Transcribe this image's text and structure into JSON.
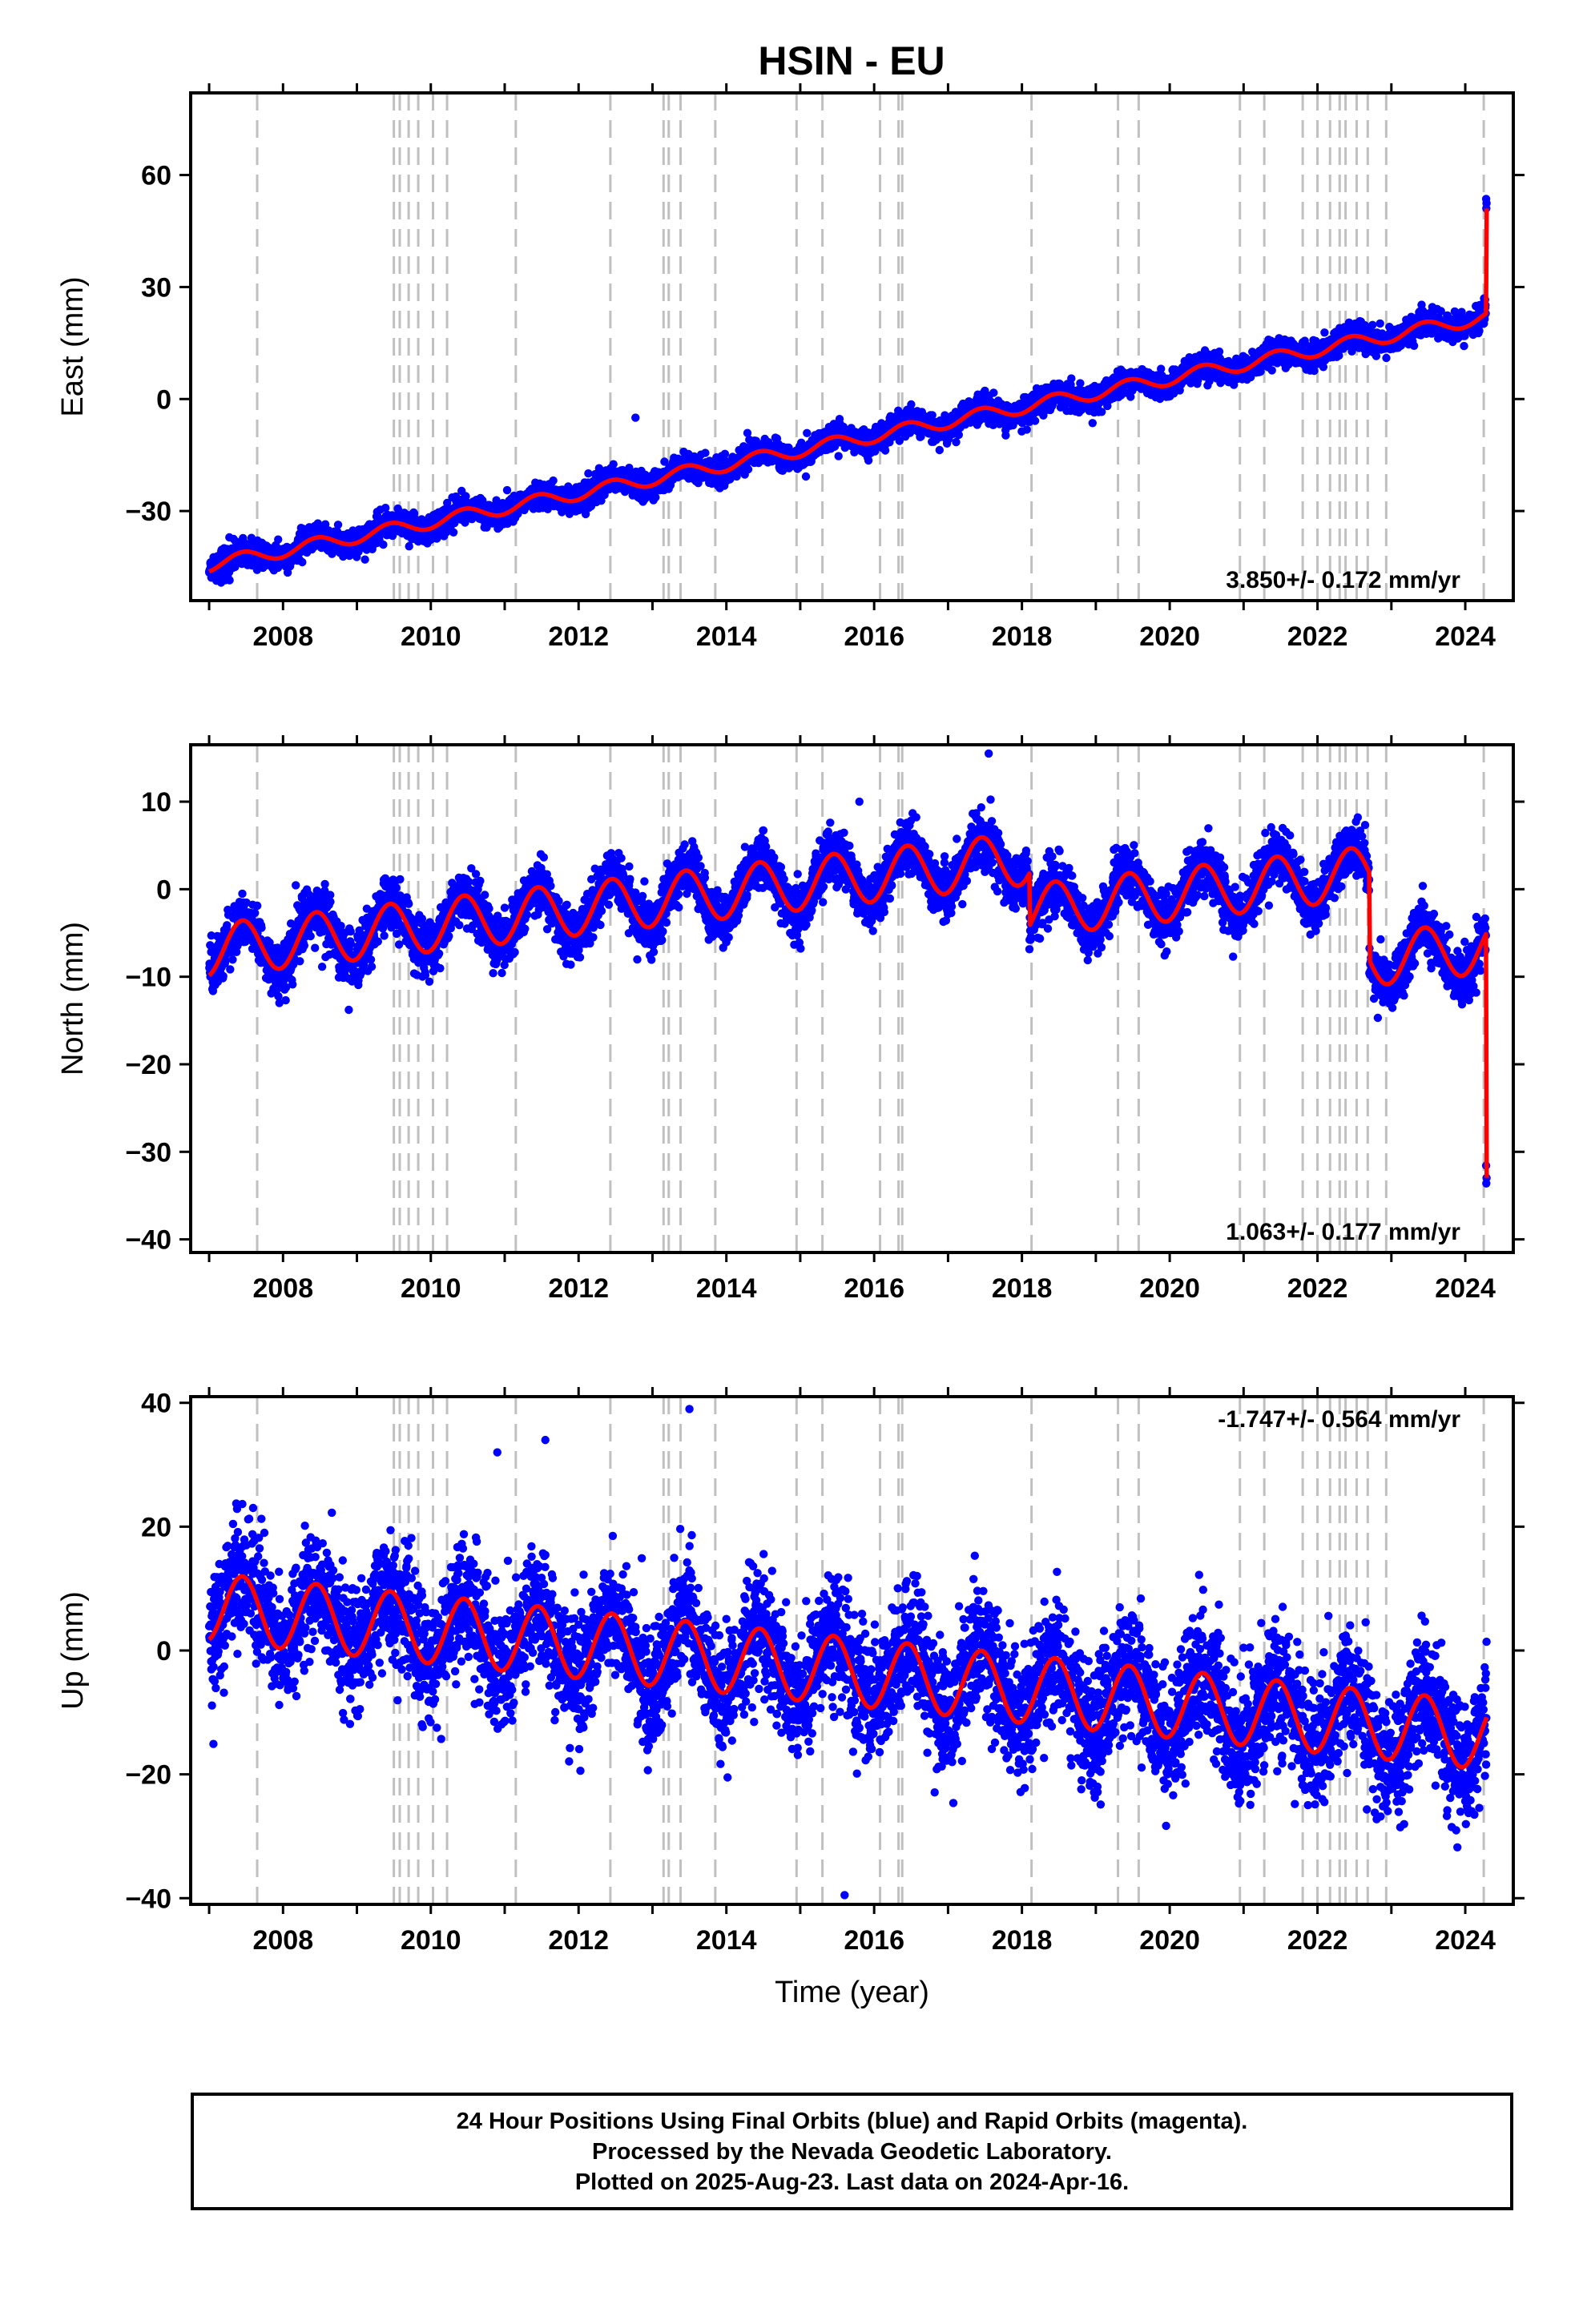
{
  "title": "HSIN - EU",
  "colors": {
    "final_orbits": "#0000ff",
    "model": "#ff0000",
    "step_lines": "#c0c0c0",
    "axis": "#000000"
  },
  "footer": {
    "line1": "24 Hour Positions Using Final Orbits (blue) and Rapid Orbits (magenta).",
    "line2": "Processed by the Nevada Geodetic Laboratory.",
    "line3": "Plotted on 2025-Aug-23. Last data on 2024-Apr-16."
  },
  "chart_data": [
    {
      "type": "scatter",
      "ylabel": "East (mm)",
      "xlabel": "",
      "xlim": [
        2006.75,
        2024.65
      ],
      "ylim": [
        -54,
        82
      ],
      "yticks": [
        -30,
        0,
        30,
        60
      ],
      "xticks": [
        2008,
        2010,
        2012,
        2014,
        2016,
        2018,
        2020,
        2022,
        2024
      ],
      "rate_label": "3.850+/- 0.172 mm/yr",
      "rate_label_position": "bottom-right",
      "trend": {
        "t0": 2007.0,
        "start": -44.5,
        "rate": 3.85,
        "seasonal_amplitude": 1.8,
        "scatter": 1.7
      },
      "offsets": [
        {
          "x": 2024.28,
          "dy": 28.0
        }
      ],
      "outliers": [
        {
          "x": 2012.77,
          "y": -5
        }
      ],
      "x_start": 2007.0,
      "x_end": 2024.29
    },
    {
      "type": "scatter",
      "ylabel": "North (mm)",
      "xlabel": "",
      "xlim": [
        2006.75,
        2024.65
      ],
      "ylim": [
        -41.5,
        16.5
      ],
      "yticks": [
        -40,
        -30,
        -20,
        -10,
        0,
        10
      ],
      "xticks": [
        2008,
        2010,
        2012,
        2014,
        2016,
        2018,
        2020,
        2022,
        2024
      ],
      "rate_label": "1.063+/- 0.177 mm/yr",
      "rate_label_position": "bottom-right",
      "trend": {
        "t0": 2007.0,
        "start": -7.0,
        "rate": 0.95,
        "seasonal_amplitude": 3.0,
        "scatter": 1.5
      },
      "offsets": [
        {
          "x": 2018.1,
          "dy": -6.0
        },
        {
          "x": 2022.7,
          "dy": -10.0
        },
        {
          "x": 2024.28,
          "dy": -28.0
        }
      ],
      "outliers": [
        {
          "x": 2017.55,
          "y": 15.5
        },
        {
          "x": 2015.8,
          "y": 10.0
        }
      ],
      "x_start": 2007.0,
      "x_end": 2024.29
    },
    {
      "type": "scatter",
      "ylabel": "Up (mm)",
      "xlabel": "Time (year)",
      "xlim": [
        2006.75,
        2024.65
      ],
      "ylim": [
        -41,
        41
      ],
      "yticks": [
        -40,
        -20,
        0,
        20,
        40
      ],
      "xticks": [
        2008,
        2010,
        2012,
        2014,
        2016,
        2018,
        2020,
        2022,
        2024
      ],
      "rate_label": "-1.747+/- 0.564 mm/yr",
      "rate_label_position": "top-right",
      "trend": {
        "t0": 2007.0,
        "start": 7.0,
        "rate": -1.2,
        "seasonal_amplitude": 5.5,
        "scatter": 5.0
      },
      "offsets": [],
      "outliers": [
        {
          "x": 2013.5,
          "y": 39
        },
        {
          "x": 2015.6,
          "y": -39.5
        },
        {
          "x": 2011.55,
          "y": 34
        },
        {
          "x": 2010.9,
          "y": 32
        }
      ],
      "x_start": 2007.0,
      "x_end": 2024.29
    }
  ],
  "steps": [
    2007.65,
    2009.5,
    2009.58,
    2009.7,
    2009.83,
    2010.03,
    2010.22,
    2011.15,
    2012.43,
    2013.15,
    2013.22,
    2013.38,
    2013.85,
    2014.95,
    2015.3,
    2016.08,
    2016.33,
    2016.38,
    2018.13,
    2019.3,
    2019.58,
    2020.95,
    2021.28,
    2021.8,
    2022.0,
    2022.17,
    2022.3,
    2022.38,
    2022.53,
    2022.68,
    2022.93,
    2024.25
  ]
}
